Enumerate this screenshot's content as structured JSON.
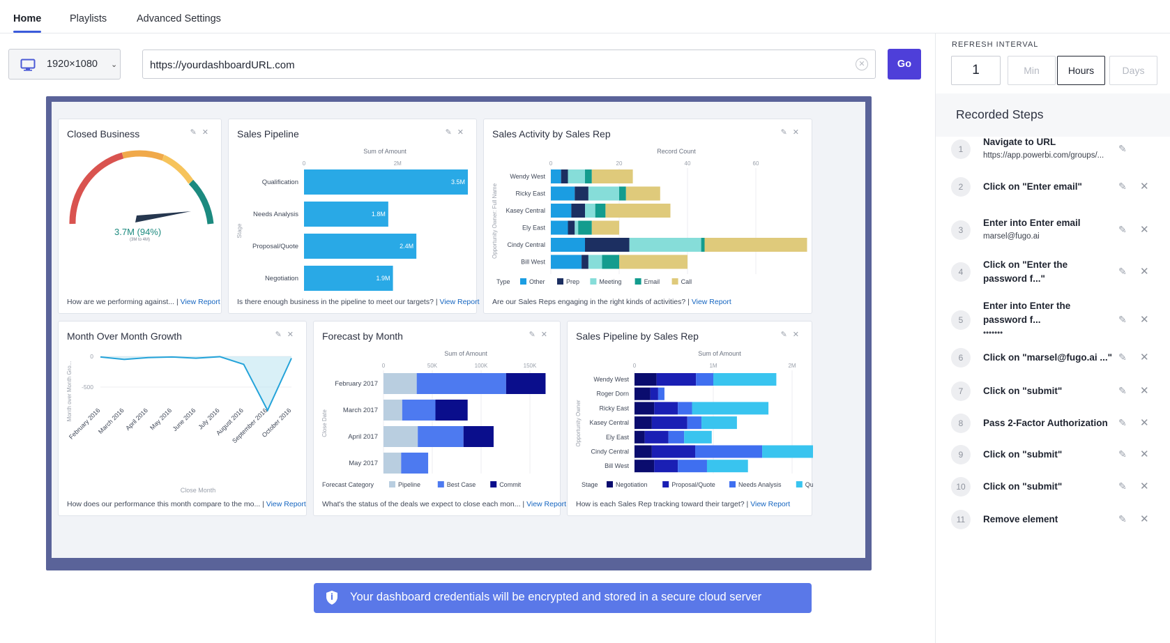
{
  "nav": {
    "tabs": [
      "Home",
      "Playlists",
      "Advanced Settings"
    ],
    "active": "Home"
  },
  "toolbar": {
    "resolution": "1920×1080",
    "url_value": "https://yourdashboardURL.com",
    "go_label": "Go"
  },
  "refresh": {
    "label": "REFRESH INTERVAL",
    "value": "1",
    "units": [
      "Min",
      "Hours",
      "Days"
    ],
    "selected": "Hours"
  },
  "recorded": {
    "title": "Recorded Steps",
    "steps": [
      {
        "n": "1",
        "title": "Navigate to URL",
        "sub": "https://app.powerbi.com/groups/..."
      },
      {
        "n": "2",
        "title": "Click on \"Enter email\"",
        "sub": ""
      },
      {
        "n": "3",
        "title": "Enter into Enter email",
        "sub": "marsel@fugo.ai"
      },
      {
        "n": "4",
        "title": "Click on \"Enter the password f...\"",
        "sub": ""
      },
      {
        "n": "5",
        "title": "Enter into Enter the password f...",
        "sub": "•••••••"
      },
      {
        "n": "6",
        "title": "Click on \"marsel@fugo.ai ...\"",
        "sub": ""
      },
      {
        "n": "7",
        "title": "Click on \"submit\"",
        "sub": ""
      },
      {
        "n": "8",
        "title": "Pass 2-Factor Authorization",
        "sub": ""
      },
      {
        "n": "9",
        "title": "Click on \"submit\"",
        "sub": ""
      },
      {
        "n": "10",
        "title": "Click on \"submit\"",
        "sub": ""
      },
      {
        "n": "11",
        "title": "Remove element",
        "sub": ""
      }
    ]
  },
  "banner": {
    "text": "Your dashboard credentials will be encrypted and stored in a secure cloud server"
  },
  "dashboard": {
    "closed_business": {
      "title": "Closed Business",
      "value": "3.7M (94%)",
      "sub": "(3M to 4M)",
      "footer_text": "How are we performing against...",
      "footer_link": "View Report"
    },
    "sales_pipeline": {
      "title": "Sales Pipeline",
      "footer_text": "Is there enough business in the pipeline to meet our targets?",
      "footer_link": "View Report"
    },
    "sales_activity": {
      "title": "Sales Activity by Sales Rep",
      "footer_text": "Are our Sales Reps engaging in the right kinds of activities?",
      "footer_link": "View Report"
    },
    "mom_growth": {
      "title": "Month Over Month Growth",
      "footer_text": "How does our performance this month compare to the mo...",
      "footer_link": "View Report"
    },
    "forecast": {
      "title": "Forecast by Month",
      "footer_text": "What's the status of the deals we expect to close each mon...",
      "footer_link": "View Report"
    },
    "pipeline_rep": {
      "title": "Sales Pipeline by Sales Rep",
      "footer_text": "How is each Sales Rep tracking toward their target?",
      "footer_link": "View Report"
    }
  },
  "chart_data": [
    {
      "type": "bar",
      "orientation": "horizontal",
      "title": "Sales Pipeline",
      "xlabel": "Sum of Amount",
      "ylabel": "Stage",
      "xticks": [
        "0",
        "2M"
      ],
      "categories": [
        "Qualification",
        "Needs Analysis",
        "Proposal/Quote",
        "Negotiation"
      ],
      "values": [
        3.5,
        1.8,
        2.4,
        1.9
      ],
      "labels": [
        "3.5M",
        "1.8M",
        "2.4M",
        "1.9M"
      ],
      "color": "#29a9e6"
    },
    {
      "type": "bar",
      "stacked": true,
      "orientation": "horizontal",
      "title": "Sales Activity by Sales Rep",
      "xlabel": "Record Count",
      "ylabel": "Opportunity Owner: Full Name",
      "xticks": [
        0,
        20,
        40,
        60
      ],
      "categories": [
        "Wendy West",
        "Ricky East",
        "Kasey Central",
        "Ely East",
        "Cindy Central",
        "Bill West"
      ],
      "legend_title": "Type",
      "series": [
        {
          "name": "Other",
          "color": "#1b9de2",
          "values": [
            3,
            7,
            6,
            5,
            10,
            9
          ]
        },
        {
          "name": "Prep",
          "color": "#1c2f61",
          "values": [
            2,
            4,
            4,
            2,
            13,
            2
          ]
        },
        {
          "name": "Meeting",
          "color": "#86ddd9",
          "values": [
            5,
            9,
            3,
            1,
            21,
            4
          ]
        },
        {
          "name": "Email",
          "color": "#139c8e",
          "values": [
            2,
            2,
            3,
            4,
            1,
            5
          ]
        },
        {
          "name": "Call",
          "color": "#dfca7b",
          "values": [
            12,
            10,
            19,
            8,
            30,
            20
          ]
        }
      ]
    },
    {
      "type": "line",
      "title": "Month Over Month Growth",
      "xlabel": "Close Month",
      "ylabel": "Month over Month Gro...",
      "yticks": [
        "0",
        "-500"
      ],
      "categories": [
        "February 2016",
        "March 2016",
        "April 2016",
        "May 2016",
        "June 2016",
        "July 2016",
        "August 2016",
        "September 2016",
        "October 2016"
      ],
      "values": [
        -10,
        -50,
        -20,
        -10,
        -30,
        -5,
        -130,
        -880,
        -30
      ]
    },
    {
      "type": "bar",
      "stacked": true,
      "orientation": "horizontal",
      "title": "Forecast by Month",
      "xlabel": "Sum of Amount",
      "ylabel": "Close Date",
      "xticks": [
        "0",
        "50K",
        "100K",
        "150K"
      ],
      "categories": [
        "February 2017",
        "March 2017",
        "April 2017",
        "May 2017"
      ],
      "legend_title": "Forecast Category",
      "series": [
        {
          "name": "Pipeline",
          "color": "#b9cee0",
          "values": [
            32,
            18,
            33,
            17
          ]
        },
        {
          "name": "Best Case",
          "color": "#4d7af0",
          "values": [
            86,
            32,
            44,
            26
          ]
        },
        {
          "name": "Commit",
          "color": "#0a0e8c",
          "values": [
            38,
            31,
            29,
            0
          ]
        }
      ]
    },
    {
      "type": "bar",
      "stacked": true,
      "orientation": "horizontal",
      "title": "Sales Pipeline by Sales Rep",
      "xlabel": "Sum of Amount",
      "ylabel": "Opportunity Owner",
      "xticks": [
        "0",
        "1M",
        "2M"
      ],
      "categories": [
        "Wendy West",
        "Roger Dorn",
        "Ricky East",
        "Kasey Central",
        "Ely East",
        "Cindy Central",
        "Bill West"
      ],
      "legend_title": "Stage",
      "series": [
        {
          "name": "Negotiation",
          "color": "#0a0c6e",
          "values": [
            0.28,
            0.2,
            0.25,
            0.22,
            0.13,
            0.22,
            0.25
          ]
        },
        {
          "name": "Proposal/Quote",
          "color": "#1a1fb4",
          "values": [
            0.5,
            0.1,
            0.3,
            0.45,
            0.3,
            0.55,
            0.3
          ]
        },
        {
          "name": "Needs Analysis",
          "color": "#3f6ff0",
          "values": [
            0.22,
            0.08,
            0.18,
            0.18,
            0.2,
            0.85,
            0.37
          ]
        },
        {
          "name": "Qua",
          "color": "#39c4ef",
          "values": [
            0.8,
            0,
            0.97,
            0.45,
            0.35,
            0.82,
            0.52
          ]
        }
      ]
    }
  ]
}
